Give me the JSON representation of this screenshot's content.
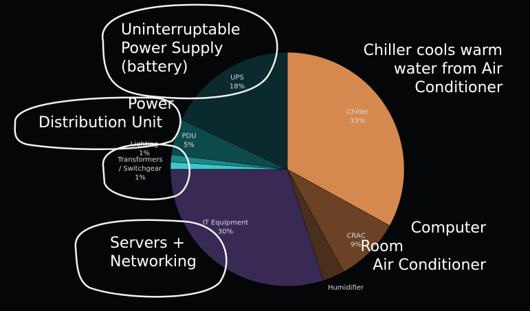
{
  "chart_data": {
    "type": "pie",
    "title": "",
    "slices": [
      {
        "label": "Chiller",
        "value": 33,
        "value_label": "33%",
        "color": "#d6894e"
      },
      {
        "label": "CRAC",
        "value": 9,
        "value_label": "9%",
        "color": "#6b4226"
      },
      {
        "label": "Humidifier",
        "value": 3,
        "value_label": "",
        "color": "#4a2f1c"
      },
      {
        "label": "IT Equipment",
        "value": 30,
        "value_label": "30%",
        "color": "#382a55"
      },
      {
        "label": "Transformers / Switchgear",
        "value": 1,
        "value_label": "1%",
        "color": "#3cc8c8"
      },
      {
        "label": "Lighting",
        "value": 1,
        "value_label": "1%",
        "color": "#1b8a8a"
      },
      {
        "label": "PDU",
        "value": 5,
        "value_label": "5%",
        "color": "#0d4a4c"
      },
      {
        "label": "UPS",
        "value": 18,
        "value_label": "18%",
        "color": "#0b2a2e"
      }
    ]
  },
  "annotations": {
    "chiller": [
      "Chiller cools warm",
      "water from Air",
      "Conditioner"
    ],
    "crac": [
      "Computer",
      "Room",
      "Air Conditioner"
    ],
    "ups": [
      "Uninterruptable",
      "Power Supply",
      "(battery)"
    ],
    "pdu": [
      "Power",
      "Distribution Unit"
    ],
    "servers": [
      "Servers +",
      "Networking"
    ]
  },
  "colors": {
    "background": "#050608",
    "label_text": "#d8d8e0",
    "annotation_text": "#ffffff"
  }
}
